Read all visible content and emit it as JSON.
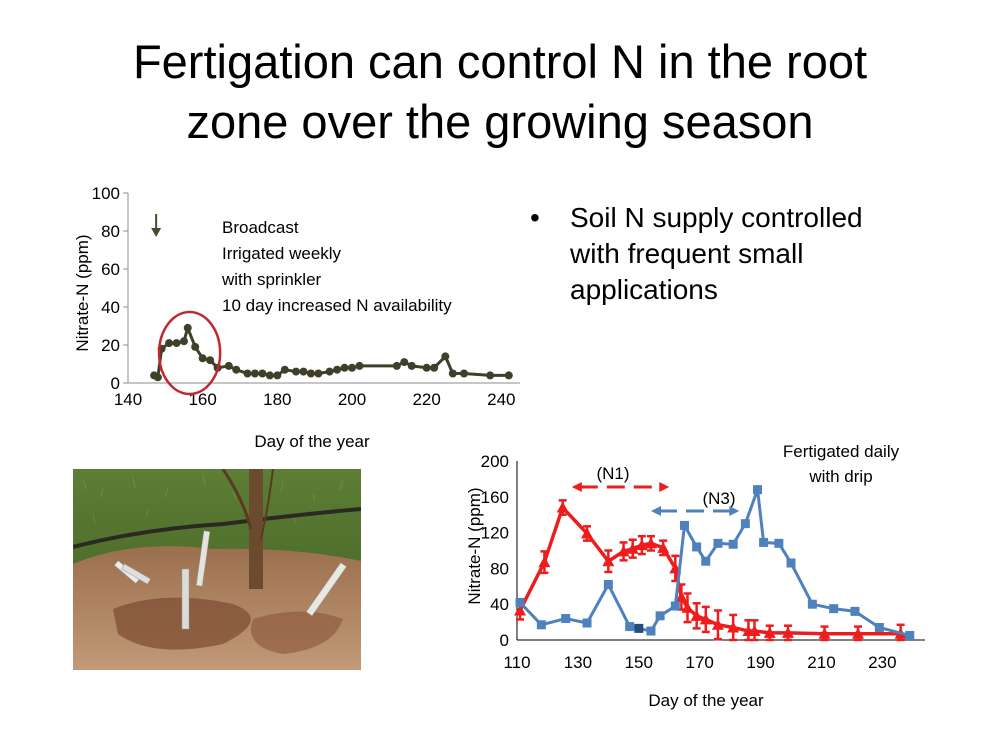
{
  "slide": {
    "title_lines": [
      "Fertigation can control N in the root",
      "zone over the growing season"
    ],
    "bullet_symbol": "•",
    "bullet_lines": [
      "Soil N supply controlled",
      "with frequent small",
      "applications"
    ]
  },
  "photo": {
    "description_icon": "photo-field-soil-samplers"
  },
  "chart_data": [
    {
      "type": "line",
      "xlabel": "Day of the year",
      "ylabel": "Nitrate-N (ppm)",
      "xlim": [
        140,
        245
      ],
      "ylim": [
        0,
        100
      ],
      "xticks": [
        140,
        160,
        180,
        200,
        220,
        240
      ],
      "yticks": [
        0,
        20,
        40,
        60,
        80,
        100
      ],
      "annotations": [
        "Broadcast",
        "Irrigated weekly",
        "with sprinkler",
        "10 day increased N availability"
      ],
      "marker_arrow_day": 147,
      "highlight_circle_day_range": [
        151,
        162
      ],
      "colors": {
        "series": "#3f3f2a",
        "circle": "#c0282d",
        "arrow": "#4a4a33"
      },
      "series": [
        {
          "x": [
            147,
            148,
            149,
            151,
            153,
            155,
            156,
            158,
            160,
            162,
            164,
            167,
            169,
            172,
            174,
            176,
            178,
            180,
            182,
            185,
            187,
            189,
            191,
            194,
            196,
            198,
            200,
            202,
            212,
            214,
            216,
            220,
            222,
            225,
            227,
            230,
            237,
            242
          ],
          "values": [
            4,
            3,
            18,
            21,
            21,
            22,
            29,
            19,
            13,
            12,
            8,
            9,
            7,
            5,
            5,
            5,
            4,
            4,
            7,
            6,
            6,
            5,
            5,
            6,
            7,
            8,
            8,
            9,
            9,
            11,
            9,
            8,
            8,
            14,
            5,
            5,
            4,
            4
          ]
        }
      ]
    },
    {
      "type": "line",
      "xlabel": "Day of the year",
      "ylabel": "Nitrate-N (ppm)",
      "xlim": [
        110,
        244
      ],
      "ylim": [
        0,
        200
      ],
      "xticks": [
        110,
        130,
        150,
        170,
        190,
        210,
        230
      ],
      "yticks": [
        0,
        40,
        80,
        120,
        160,
        200
      ],
      "annotations": [
        "Fertigated daily",
        "with drip",
        "(N1)",
        "(N3)"
      ],
      "colors": {
        "N1": "#ee1d1d",
        "N3": "#4f81bd",
        "N3_highlight": "#1f4e79"
      },
      "series": [
        {
          "label": "N1",
          "x": [
            111,
            119,
            125,
            133,
            140,
            145,
            148,
            151,
            154,
            158,
            162,
            164,
            166,
            169,
            172,
            176,
            181,
            186,
            188,
            193,
            199,
            211,
            222,
            236
          ],
          "values": [
            33,
            87,
            148,
            119,
            88,
            99,
            102,
            106,
            108,
            103,
            80,
            48,
            36,
            27,
            23,
            17,
            14,
            10,
            10,
            8,
            8,
            7,
            7,
            7
          ],
          "error": [
            10,
            12,
            8,
            8,
            12,
            10,
            10,
            10,
            8,
            8,
            14,
            14,
            16,
            14,
            14,
            16,
            14,
            12,
            12,
            8,
            8,
            8,
            8,
            10
          ]
        },
        {
          "label": "N3",
          "x": [
            111,
            118,
            126,
            133,
            140,
            147,
            150,
            154,
            157,
            162,
            165,
            169,
            172,
            176,
            181,
            185,
            189,
            191,
            196,
            200,
            207,
            214,
            221,
            229,
            239
          ],
          "values": [
            42,
            17,
            24,
            19,
            62,
            15,
            13,
            10,
            27,
            38,
            128,
            104,
            88,
            108,
            107,
            130,
            168,
            109,
            108,
            86,
            40,
            35,
            32,
            14,
            5
          ],
          "highlight_index": 6
        }
      ]
    }
  ]
}
